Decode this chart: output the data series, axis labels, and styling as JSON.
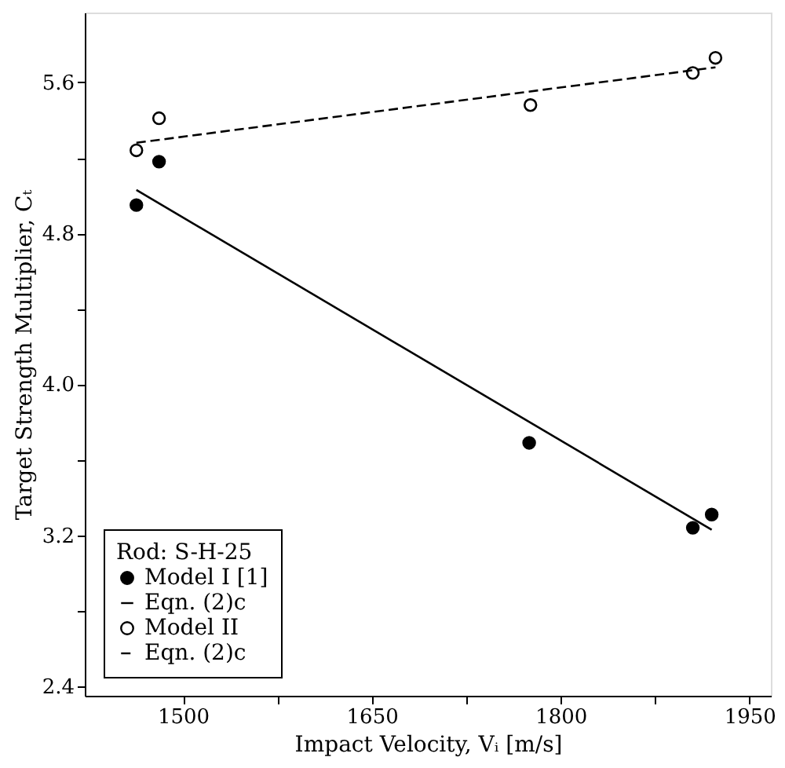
{
  "chart_data": {
    "type": "scatter",
    "xlabel": "Impact Velocity, Vᵢ [m/s]",
    "ylabel": "Target Strength Multiplier, Cₜ",
    "legend_title": "Rod: S-H-25",
    "legend": "bottom left",
    "grid": false,
    "xlim": [
      1422,
      1967
    ],
    "ylim": [
      2.35,
      5.97
    ],
    "xticks": [
      1500,
      {
        "value": 1575,
        "label": null
      },
      1650,
      {
        "value": 1725,
        "label": null
      },
      1800,
      {
        "value": 1875,
        "label": null
      },
      1950
    ],
    "yticks": [
      2.4,
      {
        "value": 2.8,
        "label": null
      },
      3.2,
      {
        "value": 3.6,
        "label": null
      },
      {
        "value": 4.0,
        "label": "4.0"
      },
      {
        "value": 4.4,
        "label": null
      },
      4.8,
      {
        "value": 5.2,
        "label": null
      },
      5.6
    ],
    "series": [
      {
        "name": "Model I [1]",
        "marker": "circle",
        "color": "#000000",
        "x": [
          1463,
          1481,
          1775,
          1905,
          1920
        ],
        "values": [
          4.95,
          5.18,
          3.69,
          3.24,
          3.31
        ]
      },
      {
        "name": "Eqn. (2)c",
        "type": "line",
        "line_style": "solid",
        "color": "#000000",
        "x": [
          1463,
          1920
        ],
        "values": [
          5.03,
          3.23
        ]
      },
      {
        "name": "Model II",
        "marker": "circle",
        "color": "#ffffff",
        "x": [
          1463,
          1481,
          1776,
          1905,
          1923
        ],
        "values": [
          5.24,
          5.41,
          5.48,
          5.65,
          5.73
        ]
      },
      {
        "name": "Eqn. (2)c",
        "type": "line",
        "line_style": "dashed",
        "color": "#000000",
        "x": [
          1463,
          1923
        ],
        "values": [
          5.28,
          5.68
        ]
      }
    ]
  }
}
